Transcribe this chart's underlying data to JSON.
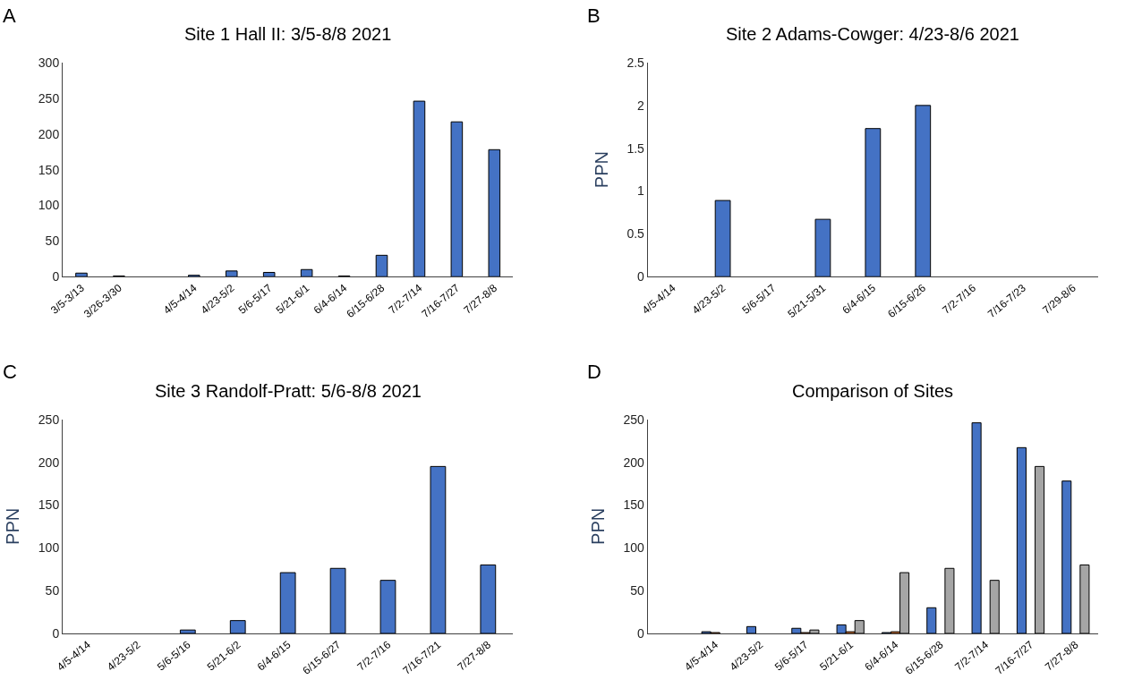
{
  "chart_data": [
    {
      "type": "bar",
      "title": "Site 1 Hall II: 3/5-8/8 2021",
      "annotations": [
        "A"
      ],
      "categories": [
        "3/5-3/13",
        "3/26-3/30",
        null,
        "4/5-4/14",
        "4/23-5/2",
        "5/6-5/17",
        "5/21-6/1",
        "6/4-6/14",
        "6/15-6/28",
        "7/2-7/14",
        "7/16-7/27",
        "7/27-8/8"
      ],
      "series": [
        {
          "color": "#4472c4",
          "values": [
            5,
            1,
            0,
            2,
            8,
            6,
            10,
            1,
            30,
            246,
            217,
            178
          ]
        }
      ],
      "ylim": [
        0,
        300
      ],
      "yticks": [
        0,
        50,
        100,
        150,
        200,
        250,
        300
      ]
    },
    {
      "type": "bar",
      "title": "Site 2 Adams-Cowger: 4/23-8/6 2021",
      "ylabel": "PPN",
      "annotations": [
        "B"
      ],
      "categories": [
        "4/5-4/14",
        "4/23-5/2",
        "5/6-5/17",
        "5/21-5/31",
        "6/4-6/15",
        "6/15-6/26",
        "7/2-7/16",
        "7/16-7/23",
        "7/29-8/6"
      ],
      "series": [
        {
          "color": "#4472c4",
          "values": [
            0,
            0.89,
            0,
            0.67,
            1.73,
            2.0,
            0,
            0,
            0
          ]
        }
      ],
      "ylim": [
        0,
        2.5
      ],
      "yticks": [
        0,
        0.5,
        1,
        1.5,
        2,
        2.5
      ]
    },
    {
      "type": "bar",
      "title": "Site 3 Randolf-Pratt: 5/6-8/8 2021",
      "ylabel": "PPN",
      "annotations": [
        "C"
      ],
      "categories": [
        "4/5-4/14",
        "4/23-5/2",
        "5/6-5/16",
        "5/21-6/2",
        "6/4-6/15",
        "6/15-6/27",
        "7/2-7/16",
        "7/16-7/21",
        "7/27-8/8"
      ],
      "series": [
        {
          "color": "#4472c4",
          "values": [
            0,
            0,
            4,
            15,
            71,
            76,
            62,
            195,
            80
          ]
        }
      ],
      "ylim": [
        0,
        250
      ],
      "yticks": [
        0,
        50,
        100,
        150,
        200,
        250
      ]
    },
    {
      "type": "bar",
      "title": "Comparison of Sites",
      "ylabel": "PPN",
      "annotations": [
        "D"
      ],
      "categories": [
        null,
        "4/5-4/14",
        "4/23-5/2",
        "5/6-5/17",
        "5/21-6/1",
        "6/4-6/14",
        "6/15-6/28",
        "7/2-7/14",
        "7/16-7/27",
        "7/27-8/8"
      ],
      "series": [
        {
          "color": "#4472c4",
          "values": [
            0,
            2,
            8,
            6,
            10,
            1,
            30,
            246,
            217,
            178
          ]
        },
        {
          "color": "#ed7d31",
          "values": [
            0,
            1,
            0,
            1,
            2,
            2,
            0,
            0,
            0,
            0
          ]
        },
        {
          "color": "#a5a5a5",
          "values": [
            0,
            0,
            0,
            4,
            15,
            71,
            76,
            62,
            195,
            80
          ]
        }
      ],
      "ylim": [
        0,
        250
      ],
      "yticks": [
        0,
        50,
        100,
        150,
        200,
        250
      ]
    }
  ]
}
